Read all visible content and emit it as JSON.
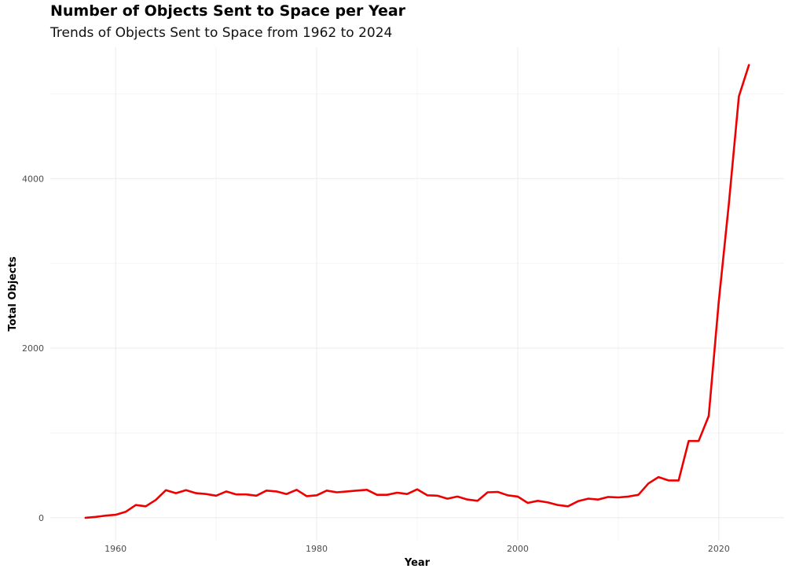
{
  "chart_data": {
    "type": "line",
    "title": "Number of Objects Sent to Space per Year",
    "subtitle": "Trends of Objects Sent to Space from 1962 to 2024",
    "xlabel": "Year",
    "ylabel": "Total Objects",
    "xlim": [
      1953.5,
      2026.5
    ],
    "ylim": [
      -270,
      5550
    ],
    "x_ticks": [
      1960,
      1980,
      2000,
      2020
    ],
    "y_ticks": [
      0,
      2000,
      4000
    ],
    "grid": true,
    "legend": "none",
    "line_color": "#ee0000",
    "series": [
      {
        "x": [
          1957,
          1958,
          1959,
          1960,
          1961,
          1962,
          1963,
          1964,
          1965,
          1966,
          1967,
          1968,
          1969,
          1970,
          1971,
          1972,
          1973,
          1974,
          1975,
          1976,
          1977,
          1978,
          1979,
          1980,
          1981,
          1982,
          1983,
          1984,
          1985,
          1986,
          1987,
          1988,
          1989,
          1990,
          1991,
          1992,
          1993,
          1994,
          1995,
          1996,
          1997,
          1998,
          1999,
          2000,
          2001,
          2002,
          2003,
          2004,
          2005,
          2006,
          2007,
          2008,
          2009,
          2010,
          2011,
          2012,
          2013,
          2014,
          2015,
          2016,
          2017,
          2018,
          2019,
          2020,
          2021,
          2022,
          2023
        ],
        "y": [
          0,
          10,
          25,
          35,
          70,
          150,
          135,
          210,
          325,
          290,
          325,
          290,
          280,
          260,
          310,
          275,
          275,
          260,
          320,
          310,
          280,
          330,
          255,
          265,
          320,
          300,
          310,
          320,
          330,
          270,
          270,
          295,
          280,
          335,
          265,
          260,
          225,
          250,
          215,
          200,
          300,
          305,
          265,
          250,
          175,
          200,
          180,
          150,
          135,
          195,
          225,
          215,
          245,
          240,
          250,
          270,
          405,
          480,
          440,
          440,
          905,
          905,
          1200,
          2550,
          3700,
          4970,
          5340
        ]
      }
    ]
  }
}
